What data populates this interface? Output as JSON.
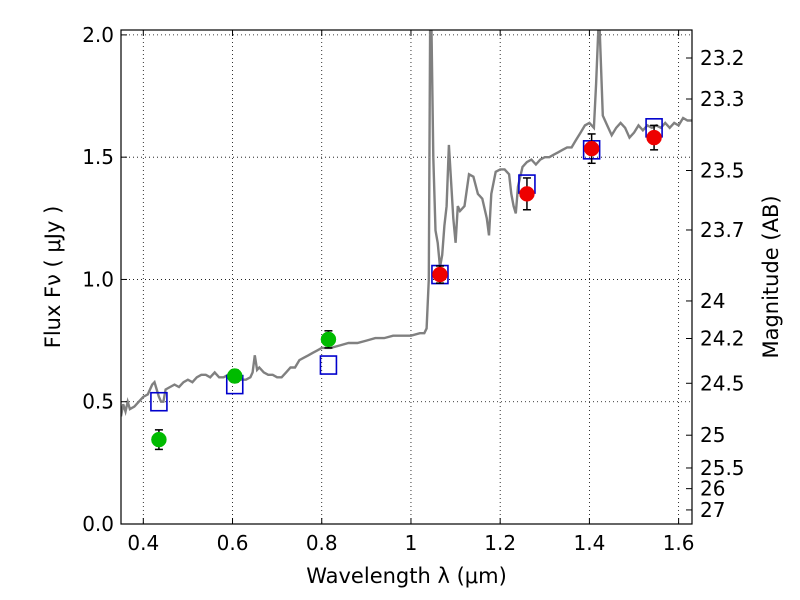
{
  "chart_data": {
    "type": "scatter",
    "xlabel": "Wavelength  λ (μm)",
    "ylabel": "Flux  Fν  ( μJy )",
    "y2label": "Magnitude (AB)",
    "xlim": [
      0.35,
      1.63
    ],
    "ylim": [
      0.0,
      2.02
    ],
    "grid": true,
    "x_ticks": [
      {
        "v": 0.4,
        "label": "0.4"
      },
      {
        "v": 0.6,
        "label": "0.6"
      },
      {
        "v": 0.8,
        "label": "0.8"
      },
      {
        "v": 1.0,
        "label": "1"
      },
      {
        "v": 1.2,
        "label": "1.2"
      },
      {
        "v": 1.4,
        "label": "1.4"
      },
      {
        "v": 1.6,
        "label": "1.6"
      }
    ],
    "y_ticks": [
      {
        "v": 0.0,
        "label": "0.0"
      },
      {
        "v": 0.5,
        "label": "0.5"
      },
      {
        "v": 1.0,
        "label": "1.0"
      },
      {
        "v": 1.5,
        "label": "1.5"
      },
      {
        "v": 2.0,
        "label": "2.0"
      }
    ],
    "mag_ticks": [
      {
        "mag": 23.2,
        "label": "23.2"
      },
      {
        "mag": 23.3,
        "label": "23.3"
      },
      {
        "mag": 23.5,
        "label": "23.5"
      },
      {
        "mag": 23.7,
        "label": "23.7"
      },
      {
        "mag": 24,
        "label": "24"
      },
      {
        "mag": 24.2,
        "label": "24.2"
      },
      {
        "mag": 24.5,
        "label": "24.5"
      },
      {
        "mag": 25,
        "label": "25"
      },
      {
        "mag": 25.5,
        "label": "25.5"
      },
      {
        "mag": 26,
        "label": "26"
      },
      {
        "mag": 27,
        "label": "27"
      }
    ],
    "spectrum": {
      "color": "#808080",
      "points": [
        [
          0.35,
          0.44
        ],
        [
          0.355,
          0.49
        ],
        [
          0.36,
          0.46
        ],
        [
          0.365,
          0.5
        ],
        [
          0.37,
          0.47
        ],
        [
          0.38,
          0.48
        ],
        [
          0.39,
          0.5
        ],
        [
          0.4,
          0.52
        ],
        [
          0.41,
          0.53
        ],
        [
          0.42,
          0.57
        ],
        [
          0.425,
          0.58
        ],
        [
          0.43,
          0.55
        ],
        [
          0.435,
          0.52
        ],
        [
          0.44,
          0.5
        ],
        [
          0.445,
          0.5
        ],
        [
          0.45,
          0.55
        ],
        [
          0.46,
          0.56
        ],
        [
          0.47,
          0.57
        ],
        [
          0.48,
          0.56
        ],
        [
          0.49,
          0.58
        ],
        [
          0.5,
          0.59
        ],
        [
          0.51,
          0.58
        ],
        [
          0.52,
          0.6
        ],
        [
          0.53,
          0.61
        ],
        [
          0.54,
          0.61
        ],
        [
          0.55,
          0.6
        ],
        [
          0.56,
          0.62
        ],
        [
          0.57,
          0.6
        ],
        [
          0.58,
          0.6
        ],
        [
          0.59,
          0.61
        ],
        [
          0.6,
          0.6
        ],
        [
          0.61,
          0.61
        ],
        [
          0.62,
          0.59
        ],
        [
          0.63,
          0.59
        ],
        [
          0.64,
          0.6
        ],
        [
          0.645,
          0.62
        ],
        [
          0.65,
          0.69
        ],
        [
          0.655,
          0.63
        ],
        [
          0.66,
          0.64
        ],
        [
          0.67,
          0.62
        ],
        [
          0.68,
          0.61
        ],
        [
          0.69,
          0.61
        ],
        [
          0.7,
          0.6
        ],
        [
          0.71,
          0.6
        ],
        [
          0.72,
          0.62
        ],
        [
          0.73,
          0.64
        ],
        [
          0.74,
          0.64
        ],
        [
          0.75,
          0.67
        ],
        [
          0.76,
          0.68
        ],
        [
          0.77,
          0.69
        ],
        [
          0.78,
          0.7
        ],
        [
          0.79,
          0.71
        ],
        [
          0.8,
          0.72
        ],
        [
          0.82,
          0.72
        ],
        [
          0.84,
          0.73
        ],
        [
          0.86,
          0.74
        ],
        [
          0.88,
          0.74
        ],
        [
          0.9,
          0.75
        ],
        [
          0.92,
          0.76
        ],
        [
          0.94,
          0.76
        ],
        [
          0.96,
          0.77
        ],
        [
          0.98,
          0.77
        ],
        [
          1.0,
          0.77
        ],
        [
          1.02,
          0.78
        ],
        [
          1.03,
          0.78
        ],
        [
          1.035,
          0.8
        ],
        [
          1.04,
          1.0
        ],
        [
          1.043,
          2.02
        ],
        [
          1.046,
          2.02
        ],
        [
          1.05,
          1.5
        ],
        [
          1.055,
          1.2
        ],
        [
          1.06,
          1.15
        ],
        [
          1.065,
          1.05
        ],
        [
          1.07,
          1.1
        ],
        [
          1.075,
          1.22
        ],
        [
          1.08,
          1.3
        ],
        [
          1.085,
          1.55
        ],
        [
          1.09,
          1.4
        ],
        [
          1.095,
          1.25
        ],
        [
          1.1,
          1.15
        ],
        [
          1.105,
          1.3
        ],
        [
          1.11,
          1.28
        ],
        [
          1.12,
          1.3
        ],
        [
          1.13,
          1.43
        ],
        [
          1.14,
          1.42
        ],
        [
          1.15,
          1.35
        ],
        [
          1.16,
          1.33
        ],
        [
          1.17,
          1.25
        ],
        [
          1.175,
          1.18
        ],
        [
          1.18,
          1.35
        ],
        [
          1.19,
          1.44
        ],
        [
          1.2,
          1.45
        ],
        [
          1.21,
          1.45
        ],
        [
          1.22,
          1.43
        ],
        [
          1.225,
          1.35
        ],
        [
          1.23,
          1.3
        ],
        [
          1.235,
          1.27
        ],
        [
          1.24,
          1.38
        ],
        [
          1.25,
          1.46
        ],
        [
          1.26,
          1.48
        ],
        [
          1.27,
          1.49
        ],
        [
          1.28,
          1.47
        ],
        [
          1.29,
          1.49
        ],
        [
          1.3,
          1.5
        ],
        [
          1.31,
          1.5
        ],
        [
          1.32,
          1.51
        ],
        [
          1.33,
          1.52
        ],
        [
          1.34,
          1.53
        ],
        [
          1.35,
          1.54
        ],
        [
          1.36,
          1.54
        ],
        [
          1.37,
          1.57
        ],
        [
          1.38,
          1.6
        ],
        [
          1.39,
          1.63
        ],
        [
          1.4,
          1.64
        ],
        [
          1.41,
          1.62
        ],
        [
          1.415,
          1.8
        ],
        [
          1.42,
          2.02
        ],
        [
          1.423,
          2.02
        ],
        [
          1.43,
          1.67
        ],
        [
          1.44,
          1.63
        ],
        [
          1.45,
          1.59
        ],
        [
          1.46,
          1.62
        ],
        [
          1.47,
          1.64
        ],
        [
          1.48,
          1.62
        ],
        [
          1.49,
          1.58
        ],
        [
          1.5,
          1.6
        ],
        [
          1.51,
          1.63
        ],
        [
          1.52,
          1.61
        ],
        [
          1.53,
          1.63
        ],
        [
          1.54,
          1.62
        ],
        [
          1.55,
          1.63
        ],
        [
          1.56,
          1.62
        ],
        [
          1.57,
          1.64
        ],
        [
          1.58,
          1.62
        ],
        [
          1.59,
          1.64
        ],
        [
          1.6,
          1.63
        ],
        [
          1.61,
          1.66
        ],
        [
          1.62,
          1.65
        ],
        [
          1.63,
          1.65
        ]
      ]
    },
    "series": [
      {
        "marker": "open-square",
        "color": "#0000cc",
        "points": [
          {
            "x": 0.435,
            "y": 0.5
          },
          {
            "x": 0.605,
            "y": 0.57
          },
          {
            "x": 0.815,
            "y": 0.65
          },
          {
            "x": 1.065,
            "y": 1.02
          },
          {
            "x": 1.26,
            "y": 1.39
          },
          {
            "x": 1.405,
            "y": 1.53
          },
          {
            "x": 1.545,
            "y": 1.62
          }
        ]
      },
      {
        "marker": "filled-circle",
        "color": "#00bb00",
        "points": [
          {
            "x": 0.435,
            "y": 0.345,
            "err": 0.04
          },
          {
            "x": 0.605,
            "y": 0.605,
            "err": 0.025
          },
          {
            "x": 0.815,
            "y": 0.755,
            "err": 0.035
          }
        ]
      },
      {
        "marker": "filled-circle",
        "color": "#ee0000",
        "points": [
          {
            "x": 1.065,
            "y": 1.02,
            "err": 0.035
          },
          {
            "x": 1.26,
            "y": 1.35,
            "err": 0.065
          },
          {
            "x": 1.405,
            "y": 1.535,
            "err": 0.06
          },
          {
            "x": 1.545,
            "y": 1.58,
            "err": 0.05
          }
        ]
      }
    ]
  }
}
